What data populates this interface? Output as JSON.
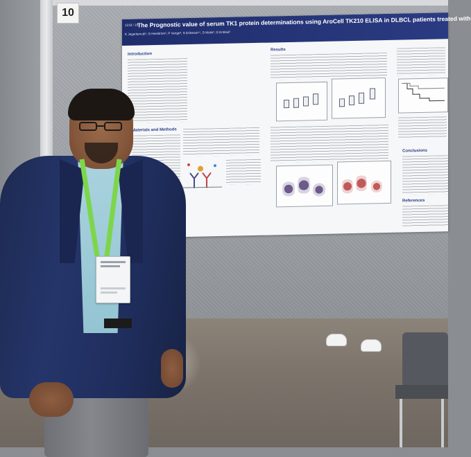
{
  "board": {
    "number": "10"
  },
  "poster": {
    "code": "1218 / 18",
    "title": "The Prognostic value of serum TK1 protein determinations using AroCell TK210 ELISA in DLBCL patients treated with",
    "authors": "K Jagarlamudi¹, G Hedström², P Venge³, S Eriksson¹⁴, D Molin², G Enblad²",
    "sections": {
      "introduction": "Introduction",
      "methods": "Materials and Methods",
      "results": "Results",
      "conclusions": "Conclusions",
      "references": "References"
    }
  },
  "colors": {
    "poster_header": "#1f2d6b",
    "section_text": "#2a3b86",
    "jacket": "#1f2d5c",
    "shirt": "#a9d3de",
    "lanyard": "#7dd64a"
  }
}
